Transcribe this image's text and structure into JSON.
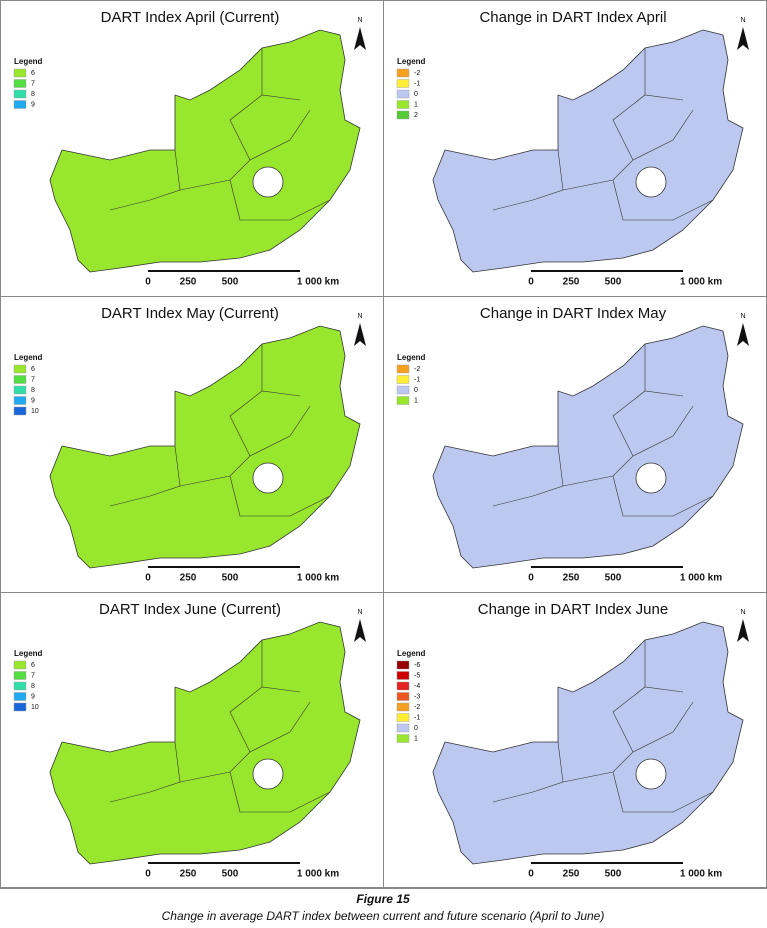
{
  "panels": [
    {
      "title": "DART Index April (Current)",
      "legend_title": "Legend",
      "map_color": "#99e62e",
      "legend": [
        {
          "label": "6",
          "color": "#99e62e"
        },
        {
          "label": "7",
          "color": "#55dd44"
        },
        {
          "label": "8",
          "color": "#33ddaa"
        },
        {
          "label": "9",
          "color": "#22aaee"
        }
      ]
    },
    {
      "title": "Change in DART Index April",
      "legend_title": "Legend",
      "map_color": "#bcc8f0",
      "legend": [
        {
          "label": "-2",
          "color": "#f5a020"
        },
        {
          "label": "-1",
          "color": "#ffee33"
        },
        {
          "label": "0",
          "color": "#bcc8f0"
        },
        {
          "label": "1",
          "color": "#99e62e"
        },
        {
          "label": "2",
          "color": "#55cc33"
        }
      ]
    },
    {
      "title": "DART Index May (Current)",
      "legend_title": "Legend",
      "map_color": "#99e62e",
      "legend": [
        {
          "label": "6",
          "color": "#99e62e"
        },
        {
          "label": "7",
          "color": "#55dd44"
        },
        {
          "label": "8",
          "color": "#33ddaa"
        },
        {
          "label": "9",
          "color": "#22aaee"
        },
        {
          "label": "10",
          "color": "#1a66dd"
        }
      ]
    },
    {
      "title": "Change in DART Index May",
      "legend_title": "Legend",
      "map_color": "#bcc8f0",
      "legend": [
        {
          "label": "-2",
          "color": "#f5a020"
        },
        {
          "label": "-1",
          "color": "#ffee33"
        },
        {
          "label": "0",
          "color": "#bcc8f0"
        },
        {
          "label": "1",
          "color": "#99e62e"
        }
      ]
    },
    {
      "title": "DART Index June (Current)",
      "legend_title": "Legend",
      "map_color": "#99e62e",
      "legend": [
        {
          "label": "6",
          "color": "#99e62e"
        },
        {
          "label": "7",
          "color": "#55dd44"
        },
        {
          "label": "8",
          "color": "#33ddaa"
        },
        {
          "label": "9",
          "color": "#22aaee"
        },
        {
          "label": "10",
          "color": "#1a66dd"
        }
      ]
    },
    {
      "title": "Change in DART Index June",
      "legend_title": "Legend",
      "map_color": "#bcc8f0",
      "legend": [
        {
          "label": "-6",
          "color": "#990000"
        },
        {
          "label": "-5",
          "color": "#cc0000"
        },
        {
          "label": "-4",
          "color": "#e52222"
        },
        {
          "label": "-3",
          "color": "#ee5522"
        },
        {
          "label": "-2",
          "color": "#f5a020"
        },
        {
          "label": "-1",
          "color": "#ffee33"
        },
        {
          "label": "0",
          "color": "#bcc8f0"
        },
        {
          "label": "1",
          "color": "#99e62e"
        }
      ]
    }
  ],
  "north": "N",
  "scale": [
    "0",
    "250",
    "500",
    "1 000 km"
  ],
  "caption": {
    "figure": "Figure 15",
    "text": "Change in average DART index between current and future scenario (April to June)"
  }
}
